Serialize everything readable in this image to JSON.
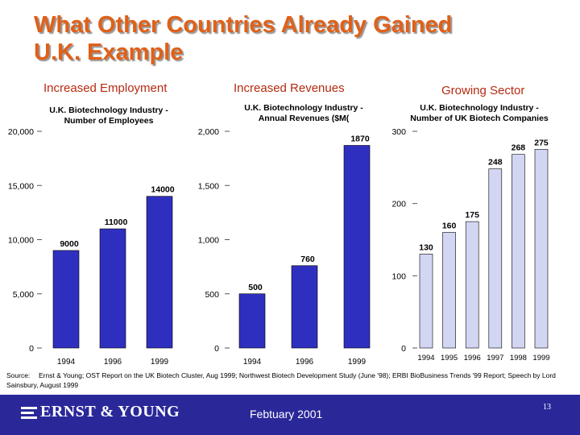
{
  "title_line1": "What Other Countries Already Gained",
  "title_line2": "U.K. Example",
  "sections": [
    {
      "heading": "Increased Employment",
      "chart_title_1": "U.K. Biotechnology Industry -",
      "chart_title_2": "Number of Employees"
    },
    {
      "heading": "Increased Revenues",
      "chart_title_1": "U.K. Biotechnology Industry -",
      "chart_title_2": "Annual Revenues ($M("
    },
    {
      "heading": "Growing Sector",
      "chart_title_1": "U.K. Biotechnology Industry -",
      "chart_title_2": "Number of UK Biotech Companies"
    }
  ],
  "source": {
    "label": "Source:",
    "text": "Ernst & Young; OST Report on the UK Biotech Cluster, Aug 1999; Northwest Biotech Development Study (June '98); ERBI BioBusiness Trends '99 Report; Speech by Lord Sainsbury, August 1999"
  },
  "footer": {
    "logo": "ERNST & YOUNG",
    "date": "Febtuary 2001",
    "page": "13",
    "background_color": "#2a2899"
  },
  "chart_data": [
    {
      "type": "bar",
      "title": "U.K. Biotechnology Industry - Number of Employees",
      "categories": [
        "1994",
        "1996",
        "1999"
      ],
      "values": [
        9000,
        11000,
        14000
      ],
      "data_labels": [
        "9000",
        "11000",
        "14000"
      ],
      "ylim": [
        0,
        20000
      ],
      "yticks": [
        0,
        5000,
        10000,
        15000,
        20000
      ],
      "ytick_labels": [
        "0",
        "5,000",
        "10,000",
        "15,000",
        "20,000"
      ],
      "bar_color": "#2f2fbf",
      "grid": false
    },
    {
      "type": "bar",
      "title": "U.K. Biotechnology Industry - Annual Revenues ($M(",
      "categories": [
        "1994",
        "1996",
        "1999"
      ],
      "values": [
        500,
        760,
        1870
      ],
      "data_labels": [
        "500",
        "760",
        "1870"
      ],
      "ylim": [
        0,
        2000
      ],
      "yticks": [
        0,
        500,
        1000,
        1500,
        2000
      ],
      "ytick_labels": [
        "0",
        "500",
        "1,000",
        "1,500",
        "2,000"
      ],
      "bar_color": "#2f2fbf",
      "grid": false
    },
    {
      "type": "bar",
      "title": "U.K. Biotechnology Industry - Number of UK Biotech Companies",
      "categories": [
        "1994",
        "1995",
        "1996",
        "1997",
        "1998",
        "1999"
      ],
      "values": [
        130,
        160,
        175,
        248,
        268,
        275
      ],
      "data_labels": [
        "130",
        "160",
        "175",
        "248",
        "268",
        "275"
      ],
      "ylim": [
        0,
        300
      ],
      "yticks": [
        0,
        100,
        200,
        300
      ],
      "ytick_labels": [
        "0",
        "100",
        "200",
        "300"
      ],
      "bar_color": "#d3d6f2",
      "grid": false
    }
  ]
}
